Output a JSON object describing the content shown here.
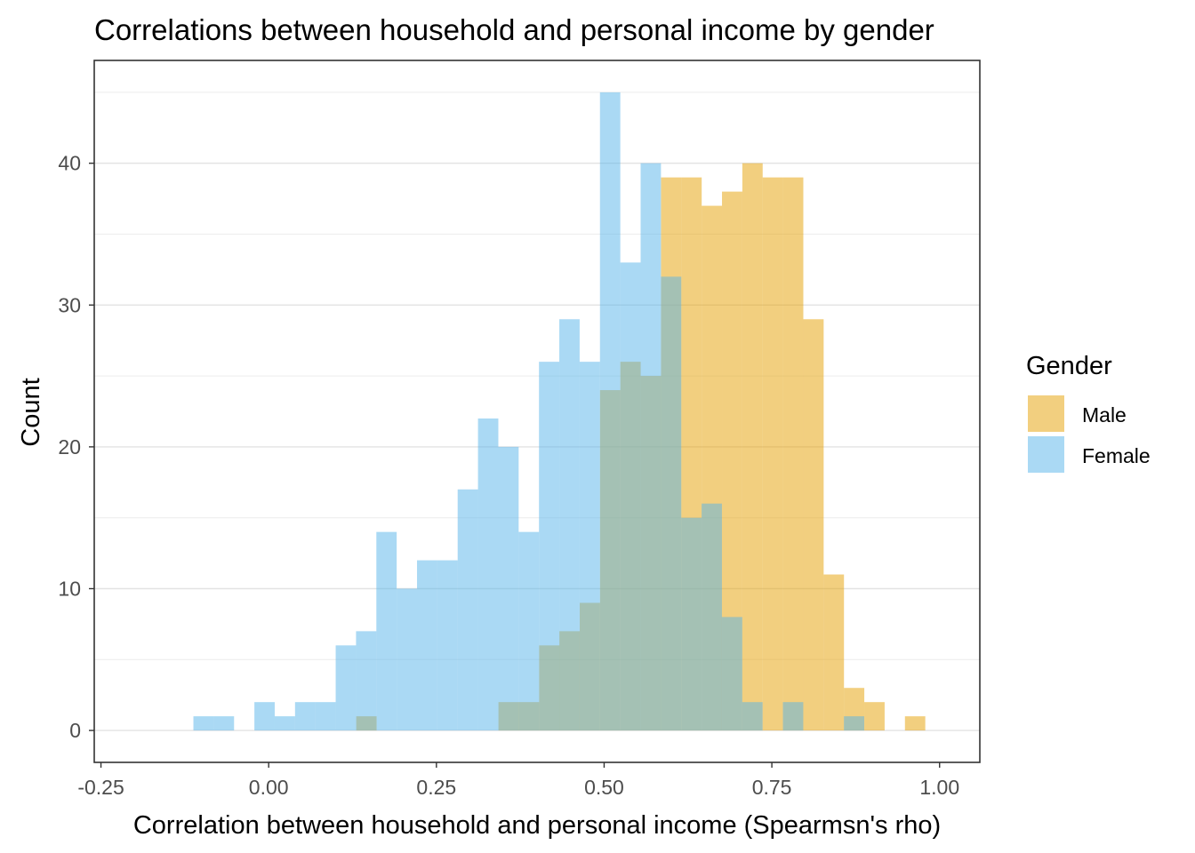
{
  "chart_data": {
    "type": "bar",
    "subtype": "overlapping-histogram",
    "title": "Correlations between household and personal income by gender",
    "xlabel": "Correlation between household and personal income (Spearmsn's rho)",
    "ylabel": "Count",
    "xlim": [
      -0.26,
      1.06
    ],
    "ylim": [
      -2.25,
      47.25
    ],
    "x_ticks": [
      -0.25,
      0.0,
      0.25,
      0.5,
      0.75,
      1.0
    ],
    "x_tick_labels": [
      "-0.25",
      "0.00",
      "0.25",
      "0.50",
      "0.75",
      "1.00"
    ],
    "y_ticks": [
      0,
      10,
      20,
      30,
      40
    ],
    "y_tick_labels": [
      "0",
      "10",
      "20",
      "30",
      "40"
    ],
    "grid": true,
    "legend_position": "right",
    "legend_title": "Gender",
    "bin_width": 0.0303,
    "series": [
      {
        "name": "Male",
        "color": "#E69F00",
        "bins": [
          {
            "x0": 0.1305,
            "count": 1
          },
          {
            "x0": 0.3425,
            "count": 2
          },
          {
            "x0": 0.3728,
            "count": 2
          },
          {
            "x0": 0.4031,
            "count": 6
          },
          {
            "x0": 0.4333,
            "count": 7
          },
          {
            "x0": 0.4636,
            "count": 9
          },
          {
            "x0": 0.4939,
            "count": 24
          },
          {
            "x0": 0.5242,
            "count": 26
          },
          {
            "x0": 0.5545,
            "count": 25
          },
          {
            "x0": 0.5848,
            "count": 39
          },
          {
            "x0": 0.6151,
            "count": 39
          },
          {
            "x0": 0.6454,
            "count": 37
          },
          {
            "x0": 0.6757,
            "count": 38
          },
          {
            "x0": 0.706,
            "count": 40
          },
          {
            "x0": 0.7363,
            "count": 39
          },
          {
            "x0": 0.7666,
            "count": 39
          },
          {
            "x0": 0.7969,
            "count": 29
          },
          {
            "x0": 0.8272,
            "count": 11
          },
          {
            "x0": 0.8575,
            "count": 3
          },
          {
            "x0": 0.8878,
            "count": 2
          },
          {
            "x0": 0.9484,
            "count": 1
          }
        ]
      },
      {
        "name": "Female",
        "color": "#56B4E9",
        "bins": [
          {
            "x0": -0.1122,
            "count": 1
          },
          {
            "x0": -0.0819,
            "count": 1
          },
          {
            "x0": -0.0213,
            "count": 2
          },
          {
            "x0": 0.009,
            "count": 1
          },
          {
            "x0": 0.0393,
            "count": 2
          },
          {
            "x0": 0.0696,
            "count": 2
          },
          {
            "x0": 0.0999,
            "count": 6
          },
          {
            "x0": 0.1302,
            "count": 7
          },
          {
            "x0": 0.1605,
            "count": 14
          },
          {
            "x0": 0.1908,
            "count": 10
          },
          {
            "x0": 0.2211,
            "count": 12
          },
          {
            "x0": 0.2514,
            "count": 12
          },
          {
            "x0": 0.2817,
            "count": 17
          },
          {
            "x0": 0.312,
            "count": 22
          },
          {
            "x0": 0.3423,
            "count": 20
          },
          {
            "x0": 0.3726,
            "count": 14
          },
          {
            "x0": 0.4029,
            "count": 26
          },
          {
            "x0": 0.4332,
            "count": 29
          },
          {
            "x0": 0.4635,
            "count": 26
          },
          {
            "x0": 0.4938,
            "count": 45
          },
          {
            "x0": 0.5241,
            "count": 33
          },
          {
            "x0": 0.5544,
            "count": 40
          },
          {
            "x0": 0.5847,
            "count": 32
          },
          {
            "x0": 0.615,
            "count": 15
          },
          {
            "x0": 0.6453,
            "count": 16
          },
          {
            "x0": 0.6756,
            "count": 8
          },
          {
            "x0": 0.7059,
            "count": 2
          },
          {
            "x0": 0.7665,
            "count": 2
          },
          {
            "x0": 0.8574,
            "count": 1
          }
        ]
      }
    ]
  }
}
